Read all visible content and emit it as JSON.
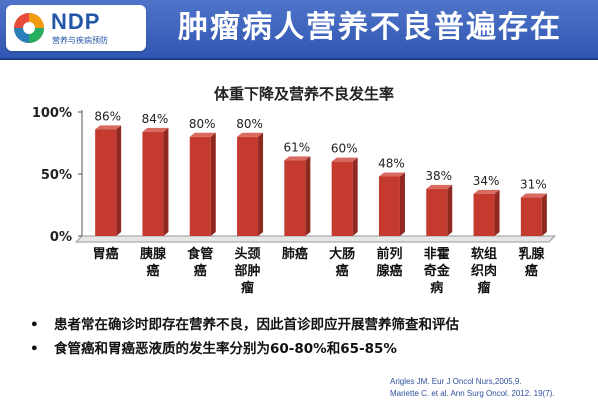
{
  "header": {
    "logo_text": "NDP",
    "logo_subtitle": "营养与疾病预防",
    "title": "肿瘤病人营养不良普遍存在"
  },
  "chart_data": {
    "type": "bar",
    "title": "体重下降及营养不良发生率",
    "categories": [
      "胃癌",
      "胰腺癌",
      "食管癌",
      "头颈部肿瘤",
      "肺癌",
      "大肠癌",
      "前列腺癌",
      "非霍奇金病",
      "软组织肉瘤",
      "乳腺癌"
    ],
    "category_lines": [
      [
        "胃癌"
      ],
      [
        "胰腺",
        "癌"
      ],
      [
        "食管",
        "癌"
      ],
      [
        "头颈",
        "部肿",
        "瘤"
      ],
      [
        "肺癌"
      ],
      [
        "大肠",
        "癌"
      ],
      [
        "前列",
        "腺癌"
      ],
      [
        "非霍",
        "奇金",
        "病"
      ],
      [
        "软组",
        "织肉",
        "瘤"
      ],
      [
        "乳腺",
        "癌"
      ]
    ],
    "values": [
      86,
      84,
      80,
      80,
      61,
      60,
      48,
      38,
      34,
      31
    ],
    "data_labels": [
      "86%",
      "84%",
      "80%",
      "80%",
      "61%",
      "60%",
      "48%",
      "38%",
      "34%",
      "31%"
    ],
    "yticks": [
      "0%",
      "50%",
      "100%"
    ],
    "ylim": [
      0,
      100
    ],
    "bar_color": "#c43a2f",
    "grid": false
  },
  "bullets": [
    "患者常在确诊时即存在营养不良，因此首诊即应开展营养筛查和评估",
    "食管癌和胃癌恶液质的发生率分别为60-80%和65-85%"
  ],
  "bullet_marker": "•",
  "references": [
    "Arigles JM. Eur J Oncol Nurs,2005,9.",
    "Mariette C. et al.  Ann Surg Oncol. 2012. 19(7)."
  ]
}
